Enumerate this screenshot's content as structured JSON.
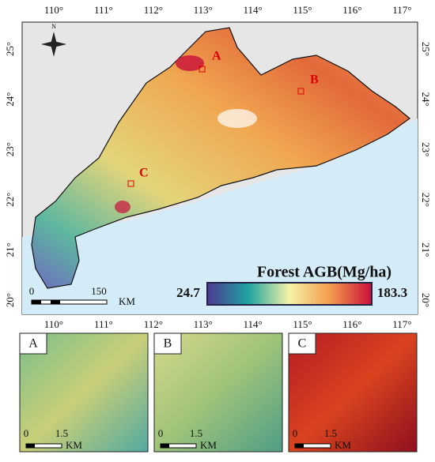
{
  "map": {
    "lon_labels": [
      "110°",
      "111°",
      "112°",
      "113°",
      "114°",
      "115°",
      "116°",
      "117°"
    ],
    "lat_labels": [
      "25°",
      "24°",
      "23°",
      "22°",
      "21°",
      "20°"
    ],
    "compass": "N",
    "site_labels": [
      "A",
      "B",
      "C"
    ],
    "legend": {
      "title": "Forest AGB(Mg/ha)",
      "min": 24.7,
      "max": 183.3
    },
    "scale_bar": {
      "start": 0,
      "end": 150,
      "unit": "KM"
    }
  },
  "insets": [
    {
      "label": "A",
      "scale_start": 0,
      "scale_end": 1.5,
      "unit": "KM"
    },
    {
      "label": "B",
      "scale_start": 0,
      "scale_end": 1.5,
      "unit": "KM"
    },
    {
      "label": "C",
      "scale_start": 0,
      "scale_end": 1.5,
      "unit": "KM"
    }
  ]
}
